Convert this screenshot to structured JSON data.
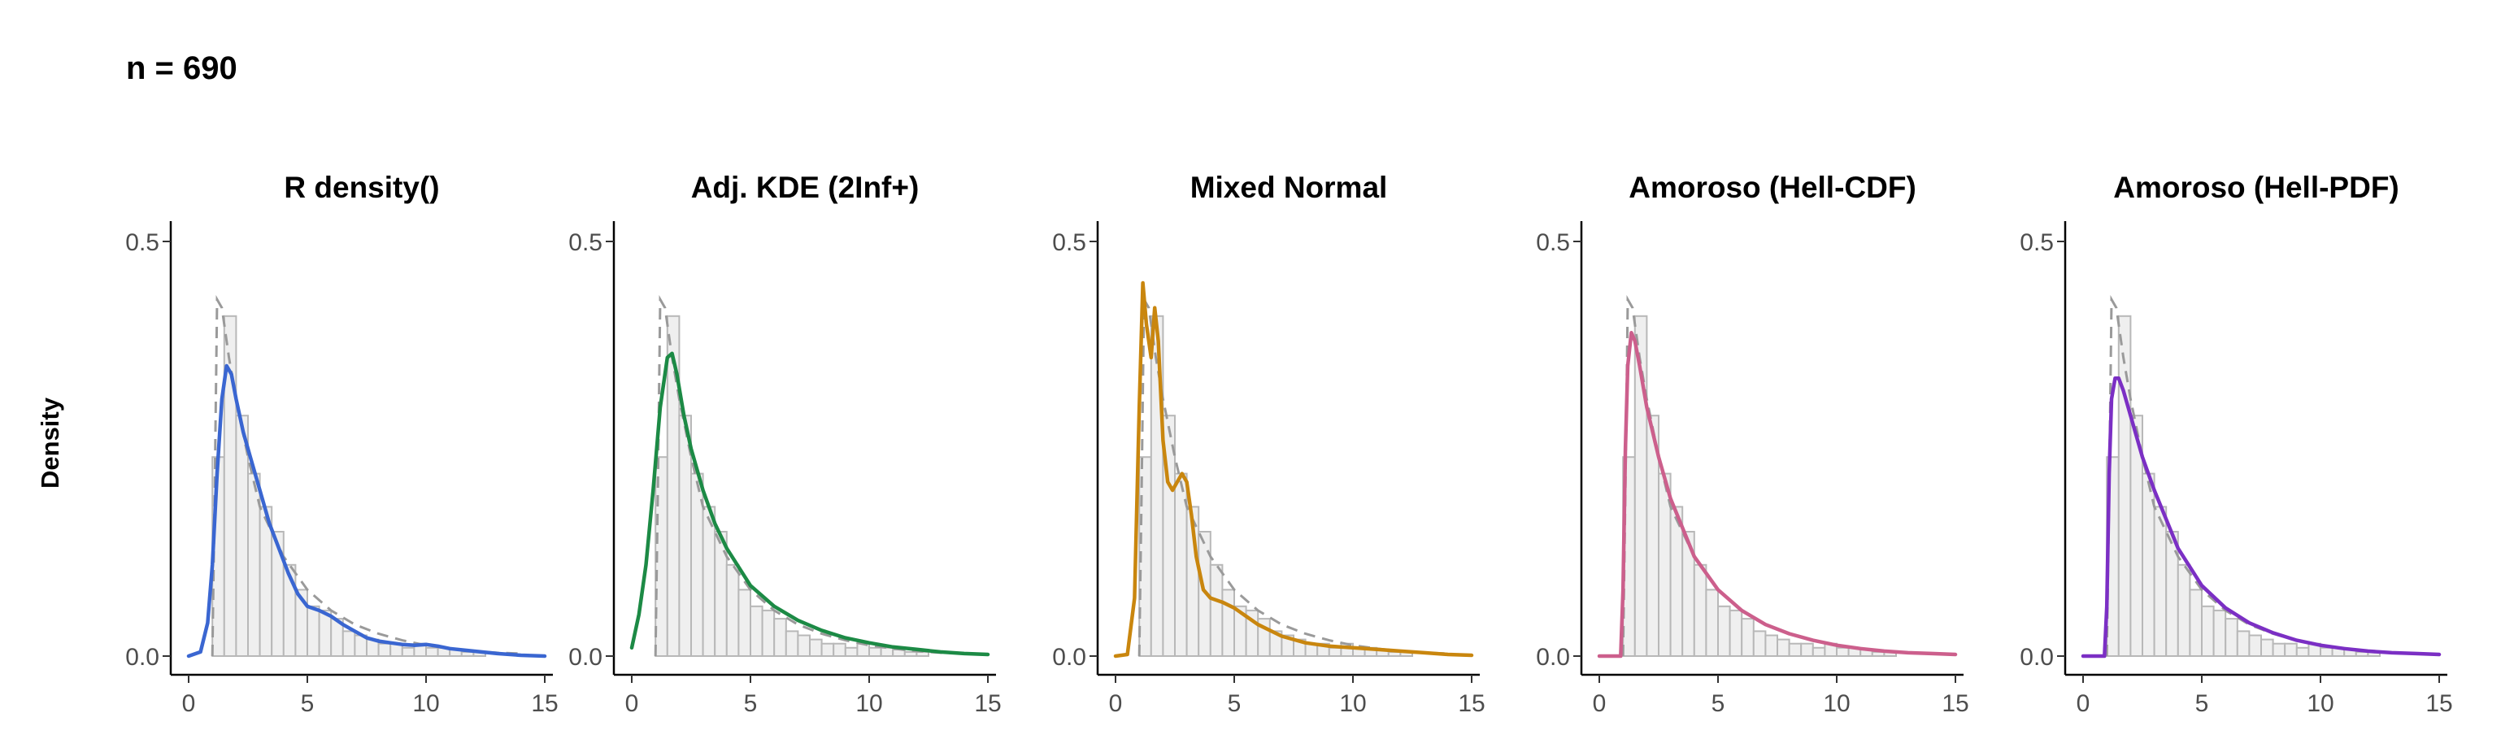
{
  "header": {
    "title": "n = 690"
  },
  "axis": {
    "ylabel": "Density"
  },
  "colors": {
    "hist_fill": "#efefef",
    "hist_stroke": "#b8b8b8",
    "reference": "#9a9a9a"
  },
  "chart_data": [
    {
      "type": "area",
      "title": "R density()",
      "color": "#3a66d1",
      "xlim": [
        0,
        15
      ],
      "ylim": [
        0,
        0.5
      ],
      "xticks": [
        0,
        5,
        10,
        15
      ],
      "yticks": [
        0.0,
        0.5
      ],
      "ytick_labels": [
        "0.0",
        "0.5"
      ],
      "grid": false,
      "histogram": {
        "bin_width": 0.5,
        "start": 0.5,
        "heights": [
          0.0,
          0.24,
          0.41,
          0.29,
          0.22,
          0.18,
          0.15,
          0.11,
          0.08,
          0.06,
          0.055,
          0.045,
          0.03,
          0.025,
          0.02,
          0.015,
          0.015,
          0.01,
          0.015,
          0.01,
          0.01,
          0.008,
          0.005,
          0.005
        ]
      },
      "reference": {
        "name": "",
        "x": [
          1.0,
          1.1,
          1.2,
          1.4,
          1.7,
          2.0,
          2.5,
          3.0,
          4.0,
          5.0,
          6.0,
          7.0,
          8.0,
          9.0,
          10.0,
          11.0,
          12.0,
          13.0,
          14.0
        ],
        "y": [
          0.0,
          0.2,
          0.43,
          0.42,
          0.36,
          0.31,
          0.24,
          0.18,
          0.12,
          0.08,
          0.055,
          0.038,
          0.027,
          0.019,
          0.013,
          0.009,
          0.006,
          0.004,
          0.003
        ]
      },
      "series": [
        {
          "name": "",
          "x": [
            0,
            0.5,
            0.8,
            1.0,
            1.2,
            1.4,
            1.6,
            1.8,
            2.0,
            2.3,
            2.6,
            3.0,
            3.4,
            3.8,
            4.2,
            4.6,
            5.0,
            5.5,
            6.0,
            6.5,
            7.0,
            7.5,
            8.0,
            8.5,
            9.0,
            9.5,
            10.0,
            10.5,
            11.0,
            12.0,
            13.0,
            14.0,
            15.0
          ],
          "y": [
            0.0,
            0.005,
            0.04,
            0.11,
            0.22,
            0.31,
            0.35,
            0.34,
            0.31,
            0.27,
            0.24,
            0.2,
            0.16,
            0.13,
            0.1,
            0.075,
            0.06,
            0.055,
            0.048,
            0.038,
            0.03,
            0.022,
            0.018,
            0.016,
            0.014,
            0.013,
            0.014,
            0.012,
            0.009,
            0.006,
            0.003,
            0.001,
            0.0
          ]
        }
      ]
    },
    {
      "type": "area",
      "title": "Adj. KDE (2Inf+)",
      "color": "#1c8a45",
      "xlim": [
        0,
        15
      ],
      "ylim": [
        0,
        0.5
      ],
      "xticks": [
        0,
        5,
        10,
        15
      ],
      "yticks": [
        0.0,
        0.5
      ],
      "ytick_labels": [
        "0.0",
        "0.5"
      ],
      "grid": false,
      "histogram": {
        "bin_width": 0.5,
        "start": 0.5,
        "heights": [
          0.0,
          0.24,
          0.41,
          0.29,
          0.22,
          0.18,
          0.15,
          0.11,
          0.08,
          0.06,
          0.055,
          0.045,
          0.03,
          0.025,
          0.02,
          0.015,
          0.015,
          0.01,
          0.015,
          0.01,
          0.01,
          0.008,
          0.005,
          0.005
        ]
      },
      "reference": {
        "name": "",
        "x": [
          1.0,
          1.1,
          1.2,
          1.4,
          1.7,
          2.0,
          2.5,
          3.0,
          4.0,
          5.0,
          6.0,
          7.0,
          8.0,
          9.0,
          10.0,
          11.0,
          12.0,
          13.0,
          14.0
        ],
        "y": [
          0.0,
          0.2,
          0.43,
          0.42,
          0.36,
          0.31,
          0.24,
          0.18,
          0.12,
          0.08,
          0.055,
          0.038,
          0.027,
          0.019,
          0.013,
          0.009,
          0.006,
          0.004,
          0.003
        ]
      },
      "series": [
        {
          "name": "",
          "x": [
            0,
            0.3,
            0.6,
            0.9,
            1.2,
            1.5,
            1.7,
            1.9,
            2.2,
            2.5,
            3.0,
            3.5,
            4.0,
            5.0,
            6.0,
            7.0,
            8.0,
            9.0,
            10.0,
            11.0,
            12.0,
            13.0,
            14.0,
            15.0
          ],
          "y": [
            0.01,
            0.05,
            0.11,
            0.2,
            0.3,
            0.36,
            0.365,
            0.34,
            0.29,
            0.25,
            0.2,
            0.16,
            0.13,
            0.085,
            0.06,
            0.043,
            0.031,
            0.022,
            0.016,
            0.011,
            0.008,
            0.005,
            0.003,
            0.002
          ]
        }
      ]
    },
    {
      "type": "area",
      "title": "Mixed Normal",
      "color": "#c9860e",
      "xlim": [
        0,
        15
      ],
      "ylim": [
        0,
        0.5
      ],
      "xticks": [
        0,
        5,
        10,
        15
      ],
      "yticks": [
        0.0,
        0.5
      ],
      "ytick_labels": [
        "0.0",
        "0.5"
      ],
      "grid": false,
      "histogram": {
        "bin_width": 0.5,
        "start": 0.5,
        "heights": [
          0.0,
          0.24,
          0.41,
          0.29,
          0.22,
          0.18,
          0.15,
          0.11,
          0.08,
          0.06,
          0.055,
          0.045,
          0.03,
          0.025,
          0.02,
          0.015,
          0.015,
          0.01,
          0.015,
          0.01,
          0.01,
          0.008,
          0.005,
          0.005
        ]
      },
      "reference": {
        "name": "",
        "x": [
          1.0,
          1.1,
          1.2,
          1.4,
          1.7,
          2.0,
          2.5,
          3.0,
          4.0,
          5.0,
          6.0,
          7.0,
          8.0,
          9.0,
          10.0,
          11.0,
          12.0,
          13.0,
          14.0
        ],
        "y": [
          0.0,
          0.2,
          0.43,
          0.42,
          0.36,
          0.31,
          0.24,
          0.18,
          0.12,
          0.08,
          0.055,
          0.038,
          0.027,
          0.019,
          0.013,
          0.009,
          0.006,
          0.004,
          0.003
        ]
      },
      "series": [
        {
          "name": "",
          "x": [
            0,
            0.5,
            0.8,
            1.0,
            1.15,
            1.3,
            1.5,
            1.65,
            1.8,
            2.0,
            2.2,
            2.4,
            2.6,
            2.8,
            3.0,
            3.2,
            3.4,
            3.7,
            4.0,
            4.5,
            5.0,
            5.5,
            6.0,
            7.0,
            8.0,
            9.0,
            10.0,
            11.0,
            12.0,
            13.0,
            14.0,
            15.0
          ],
          "y": [
            0.0,
            0.002,
            0.07,
            0.3,
            0.45,
            0.4,
            0.36,
            0.42,
            0.38,
            0.26,
            0.21,
            0.2,
            0.21,
            0.22,
            0.21,
            0.17,
            0.12,
            0.08,
            0.07,
            0.065,
            0.058,
            0.048,
            0.038,
            0.024,
            0.016,
            0.012,
            0.01,
            0.008,
            0.006,
            0.004,
            0.002,
            0.001
          ]
        }
      ]
    },
    {
      "type": "area",
      "title": "Amoroso (Hell-CDF)",
      "color": "#cc5f8c",
      "xlim": [
        0,
        15
      ],
      "ylim": [
        0,
        0.5
      ],
      "xticks": [
        0,
        5,
        10,
        15
      ],
      "yticks": [
        0.0,
        0.5
      ],
      "ytick_labels": [
        "0.0",
        "0.5"
      ],
      "grid": false,
      "histogram": {
        "bin_width": 0.5,
        "start": 0.5,
        "heights": [
          0.0,
          0.24,
          0.41,
          0.29,
          0.22,
          0.18,
          0.15,
          0.11,
          0.08,
          0.06,
          0.055,
          0.045,
          0.03,
          0.025,
          0.02,
          0.015,
          0.015,
          0.01,
          0.015,
          0.01,
          0.01,
          0.008,
          0.005,
          0.005
        ]
      },
      "reference": {
        "name": "",
        "x": [
          1.0,
          1.1,
          1.2,
          1.4,
          1.7,
          2.0,
          2.5,
          3.0,
          4.0,
          5.0,
          6.0,
          7.0,
          8.0,
          9.0,
          10.0,
          11.0,
          12.0,
          13.0,
          14.0
        ],
        "y": [
          0.0,
          0.2,
          0.43,
          0.42,
          0.36,
          0.31,
          0.24,
          0.18,
          0.12,
          0.08,
          0.055,
          0.038,
          0.027,
          0.019,
          0.013,
          0.009,
          0.006,
          0.004,
          0.003
        ]
      },
      "series": [
        {
          "name": "",
          "x": [
            0,
            0.5,
            0.9,
            1.0,
            1.1,
            1.2,
            1.35,
            1.5,
            1.7,
            2.0,
            2.5,
            3.0,
            4.0,
            5.0,
            6.0,
            7.0,
            8.0,
            9.0,
            10.0,
            11.0,
            12.0,
            13.0,
            14.0,
            15.0
          ],
          "y": [
            0.0,
            0.0,
            0.0,
            0.08,
            0.25,
            0.35,
            0.39,
            0.38,
            0.35,
            0.3,
            0.24,
            0.19,
            0.12,
            0.08,
            0.055,
            0.038,
            0.027,
            0.019,
            0.013,
            0.009,
            0.006,
            0.004,
            0.003,
            0.002
          ]
        }
      ]
    },
    {
      "type": "area",
      "title": "Amoroso (Hell-PDF)",
      "color": "#7b2fc4",
      "xlim": [
        0,
        15
      ],
      "ylim": [
        0,
        0.5
      ],
      "xticks": [
        0,
        5,
        10,
        15
      ],
      "yticks": [
        0.0,
        0.5
      ],
      "ytick_labels": [
        "0.0",
        "0.5"
      ],
      "grid": false,
      "histogram": {
        "bin_width": 0.5,
        "start": 0.5,
        "heights": [
          0.0,
          0.24,
          0.41,
          0.29,
          0.22,
          0.18,
          0.15,
          0.11,
          0.08,
          0.06,
          0.055,
          0.045,
          0.03,
          0.025,
          0.02,
          0.015,
          0.015,
          0.01,
          0.015,
          0.01,
          0.01,
          0.008,
          0.005,
          0.005
        ]
      },
      "reference": {
        "name": "",
        "x": [
          1.0,
          1.1,
          1.2,
          1.4,
          1.7,
          2.0,
          2.5,
          3.0,
          4.0,
          5.0,
          6.0,
          7.0,
          8.0,
          9.0,
          10.0,
          11.0,
          12.0,
          13.0,
          14.0
        ],
        "y": [
          0.0,
          0.2,
          0.43,
          0.42,
          0.36,
          0.31,
          0.24,
          0.18,
          0.12,
          0.08,
          0.055,
          0.038,
          0.027,
          0.019,
          0.013,
          0.009,
          0.006,
          0.004,
          0.003
        ]
      },
      "series": [
        {
          "name": "",
          "x": [
            0,
            0.5,
            0.9,
            1.0,
            1.1,
            1.2,
            1.35,
            1.5,
            1.7,
            2.0,
            2.5,
            3.0,
            4.0,
            5.0,
            6.0,
            7.0,
            8.0,
            9.0,
            10.0,
            11.0,
            12.0,
            13.0,
            14.0,
            15.0
          ],
          "y": [
            0.0,
            0.0,
            0.0,
            0.06,
            0.22,
            0.31,
            0.335,
            0.335,
            0.32,
            0.29,
            0.24,
            0.2,
            0.13,
            0.085,
            0.058,
            0.04,
            0.028,
            0.019,
            0.013,
            0.009,
            0.006,
            0.004,
            0.003,
            0.002
          ]
        }
      ]
    }
  ]
}
